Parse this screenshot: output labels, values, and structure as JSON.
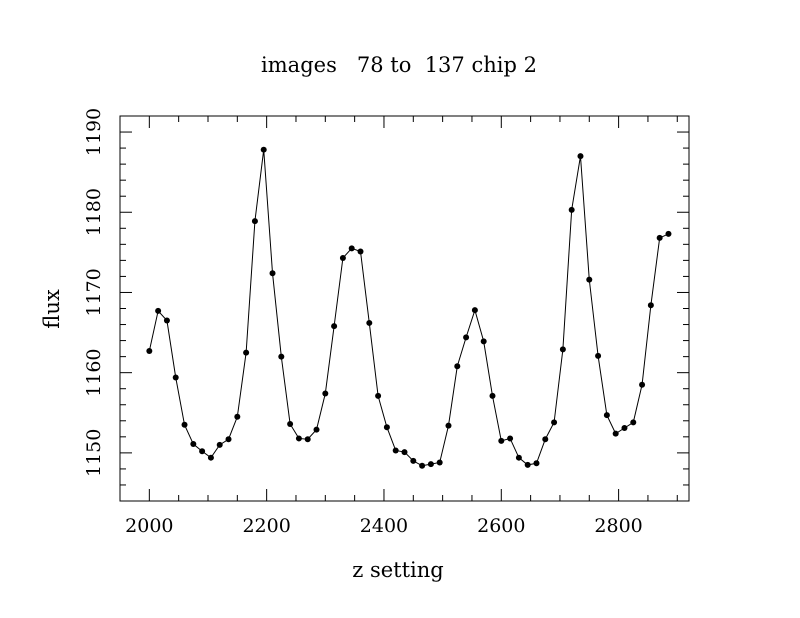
{
  "chart_data": {
    "type": "line",
    "title": "images   78 to  137 chip 2",
    "xlabel": "z setting",
    "ylabel": "flux",
    "xlim": [
      1950,
      2920
    ],
    "ylim": [
      1144,
      1192
    ],
    "x_ticks": [
      2000,
      2200,
      2400,
      2600,
      2800
    ],
    "y_ticks": [
      1150,
      1160,
      1170,
      1180,
      1190
    ],
    "x_tick_labels": [
      "2000",
      "2200",
      "2400",
      "2600",
      "2800"
    ],
    "y_tick_labels": [
      "1150",
      "1160",
      "1170",
      "1180",
      "1190"
    ],
    "grid": false,
    "legend": "none",
    "markers": true,
    "series": [
      {
        "x": [
          2000,
          2015,
          2030,
          2045,
          2060,
          2075,
          2090,
          2105,
          2120,
          2135,
          2150,
          2165,
          2180,
          2195,
          2210,
          2225,
          2240,
          2255,
          2270,
          2285,
          2300,
          2315,
          2330,
          2345,
          2360,
          2375,
          2390,
          2405,
          2420,
          2435,
          2450,
          2465,
          2480,
          2495,
          2510,
          2525,
          2540,
          2555,
          2570,
          2585,
          2600,
          2615,
          2630,
          2645,
          2660,
          2675,
          2690,
          2705,
          2720,
          2735,
          2750,
          2765,
          2780,
          2795,
          2810,
          2825,
          2840,
          2855,
          2870,
          2885
        ],
        "y": [
          1162.7,
          1167.7,
          1166.5,
          1159.4,
          1153.5,
          1151.1,
          1150.2,
          1149.4,
          1151.0,
          1151.7,
          1154.5,
          1162.5,
          1178.9,
          1187.8,
          1172.4,
          1162.0,
          1153.6,
          1151.8,
          1151.7,
          1152.9,
          1157.4,
          1165.8,
          1174.3,
          1175.5,
          1175.1,
          1166.2,
          1157.1,
          1153.2,
          1150.3,
          1150.1,
          1149.0,
          1148.4,
          1148.6,
          1148.8,
          1153.4,
          1160.8,
          1164.4,
          1167.8,
          1163.9,
          1157.1,
          1151.5,
          1151.8,
          1149.4,
          1148.5,
          1148.7,
          1151.7,
          1153.8,
          1162.9,
          1180.3,
          1187.0,
          1171.6,
          1162.1,
          1154.7,
          1152.4,
          1153.1,
          1153.8,
          1158.5,
          1168.4,
          1176.8,
          1177.3
        ]
      }
    ]
  }
}
